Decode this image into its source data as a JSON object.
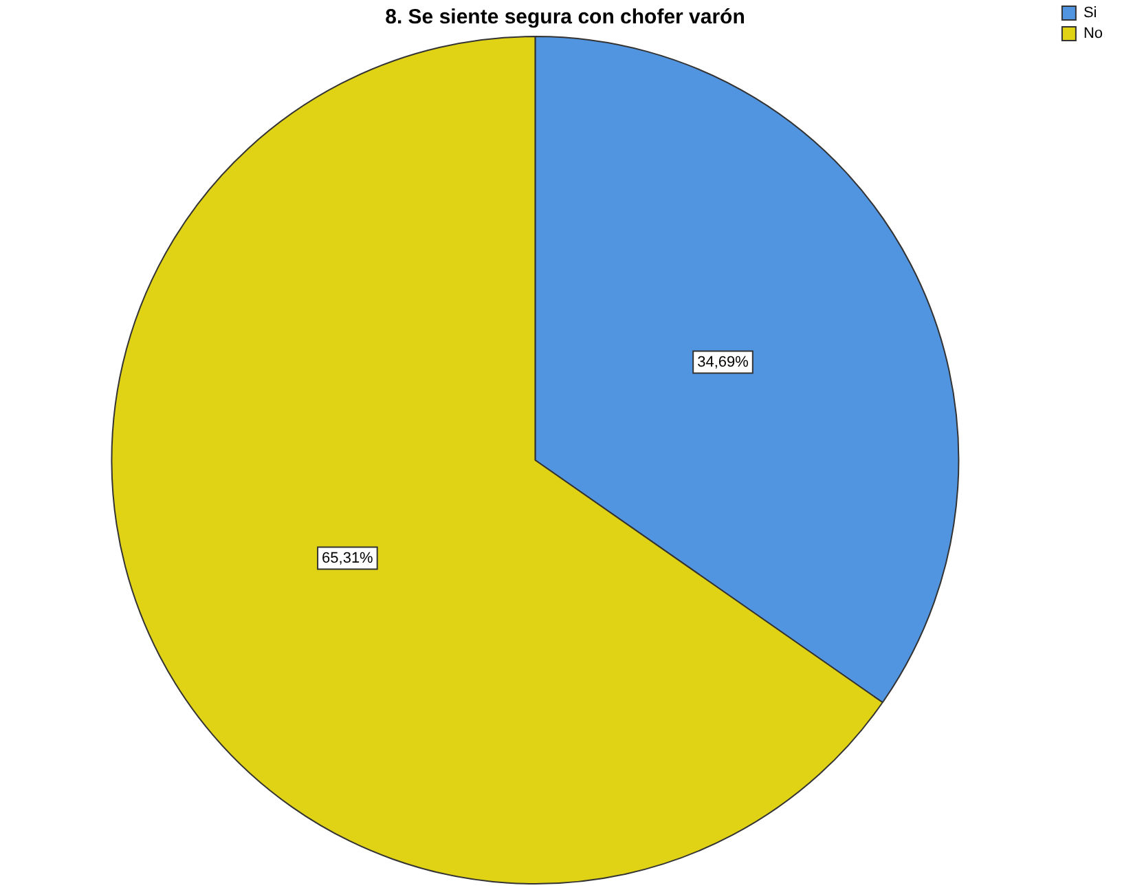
{
  "chart_data": {
    "type": "pie",
    "title": "8. Se siente segura con chofer varón",
    "categories": [
      "Si",
      "No"
    ],
    "values": [
      34.69,
      65.31
    ],
    "colors": [
      "#5194e0",
      "#e0d215"
    ],
    "value_labels": [
      "34,69%",
      "65,31%"
    ],
    "legend": "top right"
  }
}
